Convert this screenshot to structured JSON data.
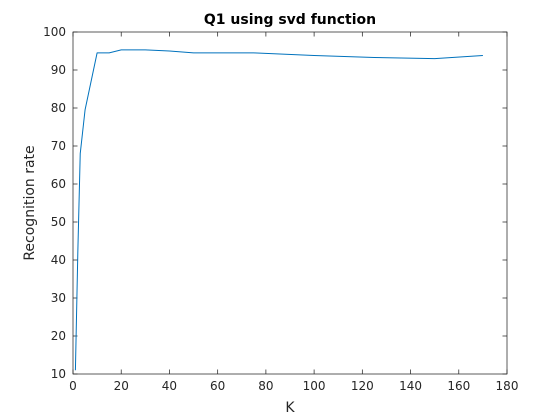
{
  "chart_data": {
    "type": "line",
    "title": "Q1 using svd function",
    "xlabel": "K",
    "ylabel": "Recognition rate",
    "xlim": [
      0,
      180
    ],
    "ylim": [
      10,
      100
    ],
    "xticks": [
      0,
      20,
      40,
      60,
      80,
      100,
      120,
      140,
      160,
      180
    ],
    "yticks": [
      10,
      20,
      30,
      40,
      50,
      60,
      70,
      80,
      90,
      100
    ],
    "grid": false,
    "series": [
      {
        "color": "#0072BD",
        "x": [
          1,
          2,
          3,
          5,
          10,
          15,
          20,
          30,
          40,
          50,
          75,
          100,
          125,
          150,
          170
        ],
        "y": [
          11,
          42,
          68,
          79.5,
          94.5,
          94.5,
          95.3,
          95.3,
          95,
          94.5,
          94.5,
          93.8,
          93.3,
          93,
          93.8
        ]
      }
    ]
  }
}
